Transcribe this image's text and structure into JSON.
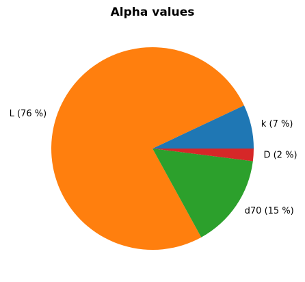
{
  "chart_data": {
    "type": "pie",
    "title": "Alpha values",
    "categories": [
      "k (7 %)",
      "L (76 %)",
      "d70 (15 %)",
      "D (2 %)"
    ],
    "values": [
      7,
      76,
      15,
      2
    ],
    "colors": [
      "#1f77b4",
      "#ff7f0e",
      "#2ca02c",
      "#d62728"
    ]
  }
}
